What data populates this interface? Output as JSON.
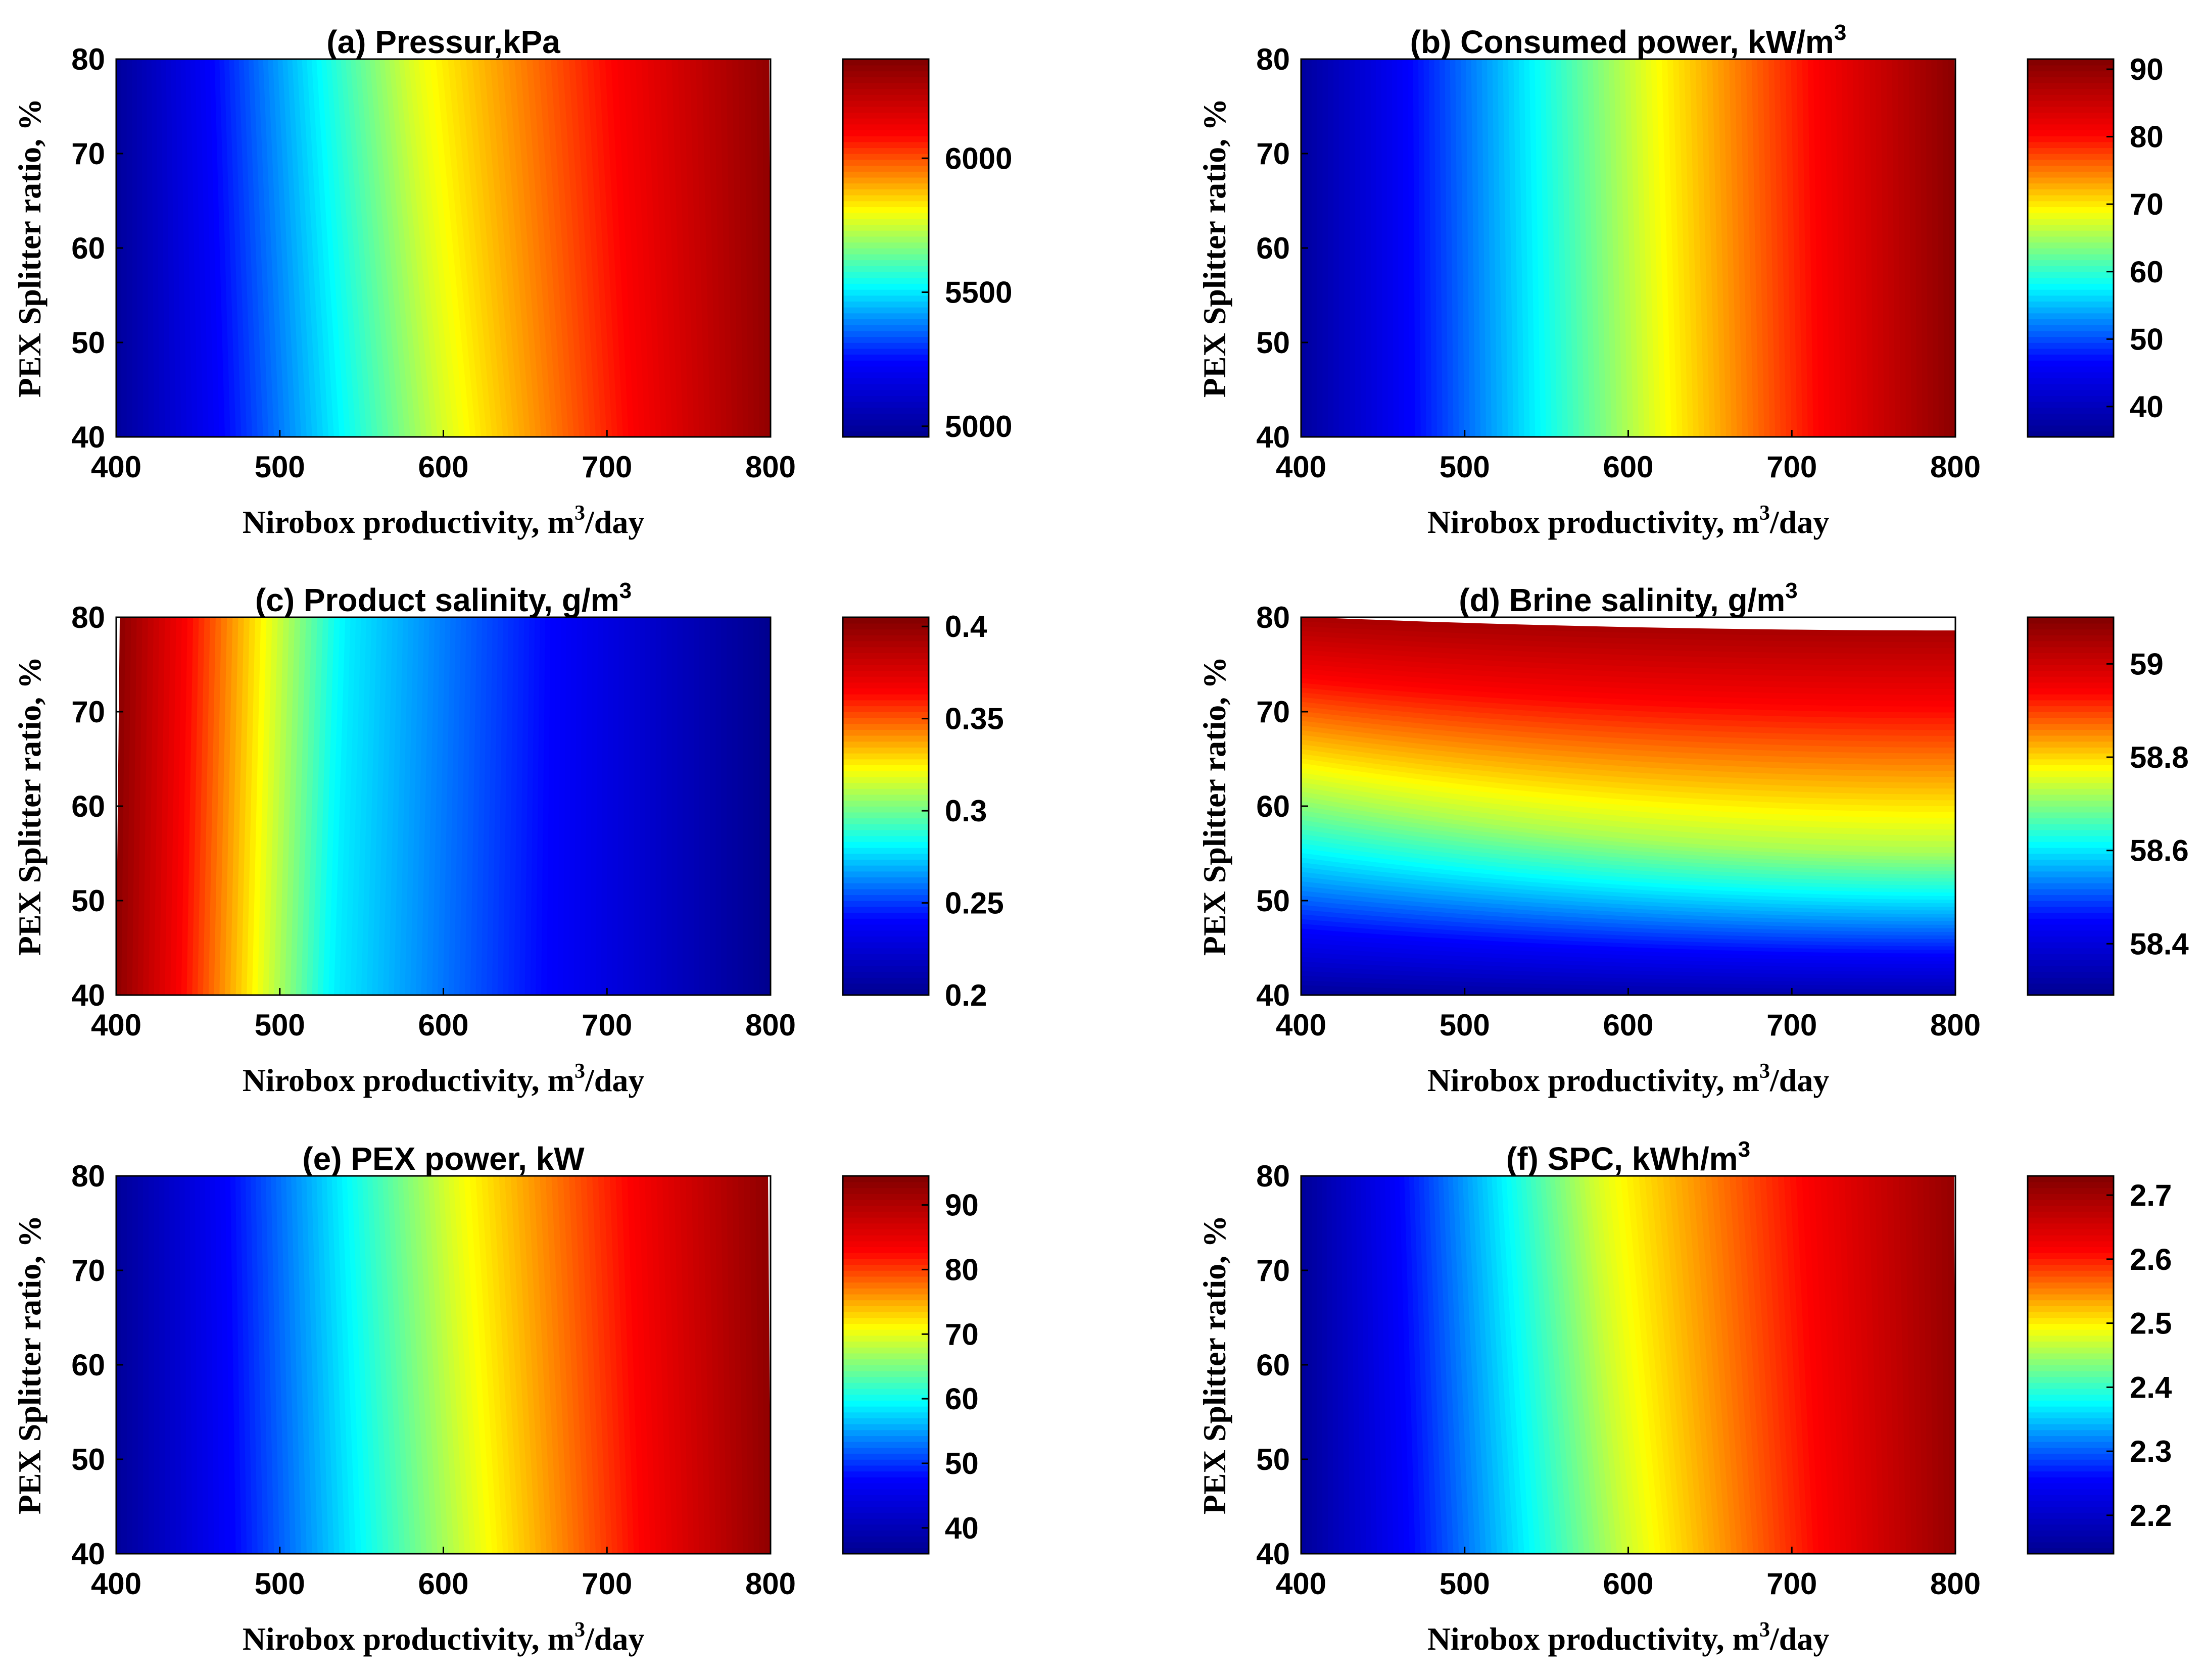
{
  "chart_data": [
    {
      "id": "a",
      "type": "heatmap",
      "title_parts": [
        "(a) Pressur,kPa"
      ],
      "xlabel_parts": [
        "Nirobox productivity, m",
        "3",
        "/day"
      ],
      "ylabel": "PEX Splitter ratio, %",
      "xlim": [
        400,
        800
      ],
      "ylim": [
        40,
        80
      ],
      "x_ticks": [
        "400",
        "500",
        "600",
        "700",
        "800"
      ],
      "y_ticks": [
        "40",
        "50",
        "60",
        "70",
        "80"
      ],
      "colorbar": {
        "min": 4960,
        "max": 6370,
        "ticks": [
          5000,
          5500,
          6000
        ],
        "tick_labels": [
          "5000",
          "5500",
          "6000"
        ]
      },
      "field": {
        "kind": "x_skew",
        "range_at_ymin": [
          4990,
          6310
        ],
        "range_at_ymax": [
          4990,
          6350
        ],
        "kink_x_at_ymin": 620,
        "kink_x_at_ymax": 598
      }
    },
    {
      "id": "b",
      "type": "heatmap",
      "title_parts": [
        "(b) Consumed power, kW/m",
        "3"
      ],
      "xlabel_parts": [
        "Nirobox productivity, m",
        "3",
        "/day"
      ],
      "ylabel": "PEX Splitter ratio, %",
      "xlim": [
        400,
        800
      ],
      "ylim": [
        40,
        80
      ],
      "x_ticks": [
        "400",
        "500",
        "600",
        "700",
        "800"
      ],
      "y_ticks": [
        "40",
        "50",
        "60",
        "70",
        "80"
      ],
      "colorbar": {
        "min": 35.5,
        "max": 91.5,
        "ticks": [
          40,
          50,
          60,
          70,
          80,
          90
        ],
        "tick_labels": [
          "40",
          "50",
          "60",
          "70",
          "80",
          "90"
        ]
      },
      "field": {
        "kind": "x_skew",
        "range_at_ymin": [
          37,
          90
        ],
        "range_at_ymax": [
          37,
          91
        ],
        "kink_x_at_ymin": 628,
        "kink_x_at_ymax": 622
      }
    },
    {
      "id": "c",
      "type": "heatmap",
      "title_parts": [
        "(c) Product salinity, g/m",
        "3"
      ],
      "xlabel_parts": [
        "Nirobox productivity, m",
        "3",
        "/day"
      ],
      "ylabel": "PEX Splitter ratio, %",
      "xlim": [
        400,
        800
      ],
      "ylim": [
        40,
        80
      ],
      "x_ticks": [
        "400",
        "500",
        "600",
        "700",
        "800"
      ],
      "y_ticks": [
        "40",
        "50",
        "60",
        "70",
        "80"
      ],
      "colorbar": {
        "min": 0.2,
        "max": 0.405,
        "ticks": [
          0.2,
          0.25,
          0.3,
          0.35,
          0.4
        ],
        "tick_labels": [
          "0.2",
          "0.25",
          "0.3",
          "0.35",
          "0.4"
        ]
      },
      "field": {
        "kind": "x_skew",
        "range_at_ymin": [
          0.4,
          0.2
        ],
        "range_at_ymax": [
          0.402,
          0.2
        ],
        "kink_x_at_ymin": 528,
        "kink_x_at_ymax": 535
      }
    },
    {
      "id": "d",
      "type": "heatmap",
      "title_parts": [
        "(d) Brine salinity, g/m",
        "3"
      ],
      "xlabel_parts": [
        "Nirobox productivity, m",
        "3",
        "/day"
      ],
      "ylabel": "PEX Splitter ratio, %",
      "xlim": [
        400,
        800
      ],
      "ylim": [
        40,
        80
      ],
      "x_ticks": [
        "400",
        "500",
        "600",
        "700",
        "800"
      ],
      "y_ticks": [
        "40",
        "50",
        "60",
        "70",
        "80"
      ],
      "colorbar": {
        "min": 58.29,
        "max": 59.1,
        "ticks": [
          58.4,
          58.6,
          58.8,
          59.0
        ],
        "tick_labels": [
          "58.4",
          "58.6",
          "58.8",
          "59"
        ]
      },
      "field": {
        "kind": "y_bands",
        "value_at_ymin": 58.3,
        "value_at_ymax": 59.05,
        "band_y_at_xmin": 64,
        "band_y_at_xmax": 58,
        "band_value": 58.7
      }
    },
    {
      "id": "e",
      "type": "heatmap",
      "title_parts": [
        "(e) PEX power, kW"
      ],
      "xlabel_parts": [
        "Nirobox productivity, m",
        "3",
        "/day"
      ],
      "ylabel": "PEX Splitter ratio, %",
      "xlim": [
        400,
        800
      ],
      "ylim": [
        40,
        80
      ],
      "x_ticks": [
        "400",
        "500",
        "600",
        "700",
        "800"
      ],
      "y_ticks": [
        "40",
        "50",
        "60",
        "70",
        "80"
      ],
      "colorbar": {
        "min": 36,
        "max": 94.5,
        "ticks": [
          40,
          50,
          60,
          70,
          80,
          90
        ],
        "tick_labels": [
          "40",
          "50",
          "60",
          "70",
          "80",
          "90"
        ]
      },
      "field": {
        "kind": "x_skew",
        "range_at_ymin": [
          37,
          92
        ],
        "range_at_ymax": [
          37,
          94
        ],
        "kink_x_at_ymin": 632,
        "kink_x_at_ymax": 618
      }
    },
    {
      "id": "f",
      "type": "heatmap",
      "title_parts": [
        "(f) SPC, kWh/m",
        "3"
      ],
      "xlabel_parts": [
        "Nirobox productivity, m",
        "3",
        "/day"
      ],
      "ylabel": "PEX Splitter ratio, %",
      "xlim": [
        400,
        800
      ],
      "ylim": [
        40,
        80
      ],
      "x_ticks": [
        "400",
        "500",
        "600",
        "700",
        "800"
      ],
      "y_ticks": [
        "40",
        "50",
        "60",
        "70",
        "80"
      ],
      "colorbar": {
        "min": 2.14,
        "max": 2.73,
        "ticks": [
          2.2,
          2.3,
          2.4,
          2.5,
          2.6,
          2.7
        ],
        "tick_labels": [
          "2.2",
          "2.3",
          "2.4",
          "2.5",
          "2.6",
          "2.7"
        ]
      },
      "field": {
        "kind": "x_skew",
        "range_at_ymin": [
          2.15,
          2.7
        ],
        "range_at_ymax": [
          2.15,
          2.72
        ],
        "kink_x_at_ymin": 620,
        "kink_x_at_ymax": 598
      }
    }
  ],
  "colormap": [
    "#00008f",
    "#0000ff",
    "#00ffff",
    "#ffff00",
    "#ff0000",
    "#800000"
  ]
}
